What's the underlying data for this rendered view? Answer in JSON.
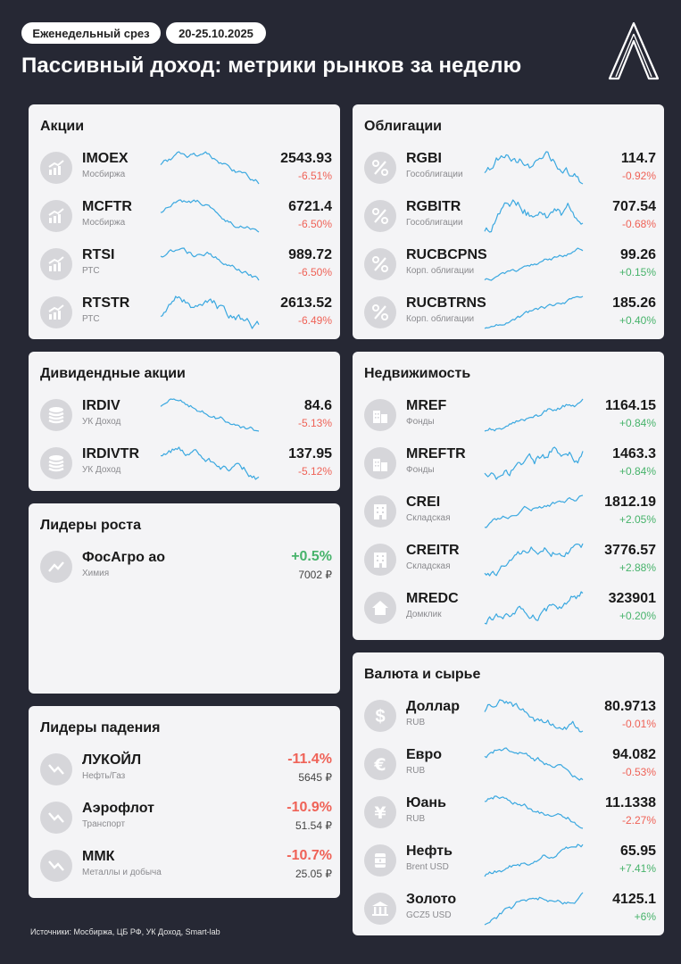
{
  "header": {
    "badge_weekly": "Еженедельный срез",
    "badge_dates": "20-25.10.2025",
    "title": "Пассивный доход: метрики рынков за неделю"
  },
  "colors": {
    "background": "#262834",
    "card": "#f4f4f6",
    "negative": "#ef6257",
    "positive": "#47b36b",
    "sparkline": "#3aa8e0"
  },
  "stocks": {
    "title": "Акции",
    "items": [
      {
        "name": "IMOEX",
        "sub": "Мосбиржа",
        "value": "2543.93",
        "change": "-6.51%",
        "dir": "neg",
        "icon": "chart-up-icon"
      },
      {
        "name": "MCFTR",
        "sub": "Мосбиржа",
        "value": "6721.4",
        "change": "-6.50%",
        "dir": "neg",
        "icon": "chart-up-icon"
      },
      {
        "name": "RTSI",
        "sub": "РТС",
        "value": "989.72",
        "change": "-6.50%",
        "dir": "neg",
        "icon": "chart-up-icon"
      },
      {
        "name": "RTSTR",
        "sub": "РТС",
        "value": "2613.52",
        "change": "-6.49%",
        "dir": "neg",
        "icon": "chart-up-icon"
      }
    ]
  },
  "bonds": {
    "title": "Облигации",
    "items": [
      {
        "name": "RGBI",
        "sub": "Гособлигации",
        "value": "114.7",
        "change": "-0.92%",
        "dir": "neg",
        "icon": "percent-icon"
      },
      {
        "name": "RGBITR",
        "sub": "Гособлигации",
        "value": "707.54",
        "change": "-0.68%",
        "dir": "neg",
        "icon": "percent-icon"
      },
      {
        "name": "RUCBCPNS",
        "sub": "Корп. облигации",
        "value": "99.26",
        "change": "+0.15%",
        "dir": "pos",
        "icon": "percent-icon"
      },
      {
        "name": "RUCBTRNS",
        "sub": "Корп. облигации",
        "value": "185.26",
        "change": "+0.40%",
        "dir": "pos",
        "icon": "percent-icon"
      }
    ]
  },
  "dividend": {
    "title": "Дивидендные акции",
    "items": [
      {
        "name": "IRDIV",
        "sub": "УК Доход",
        "value": "84.6",
        "change": "-5.13%",
        "dir": "neg",
        "icon": "coin-stack-icon"
      },
      {
        "name": "IRDIVTR",
        "sub": "УК Доход",
        "value": "137.95",
        "change": "-5.12%",
        "dir": "neg",
        "icon": "coin-stack-icon"
      }
    ]
  },
  "realty": {
    "title": "Недвижимость",
    "items": [
      {
        "name": "MREF",
        "sub": "Фонды",
        "value": "1164.15",
        "change": "+0.84%",
        "dir": "pos",
        "icon": "buildings-icon"
      },
      {
        "name": "MREFTR",
        "sub": "Фонды",
        "value": "1463.3",
        "change": "+0.84%",
        "dir": "pos",
        "icon": "buildings-icon"
      },
      {
        "name": "CREI",
        "sub": "Складская",
        "value": "1812.19",
        "change": "+2.05%",
        "dir": "pos",
        "icon": "building-icon"
      },
      {
        "name": "CREITR",
        "sub": "Складская",
        "value": "3776.57",
        "change": "+2.88%",
        "dir": "pos",
        "icon": "building-icon"
      },
      {
        "name": "MREDC",
        "sub": "Домклик",
        "value": "323901",
        "change": "+0.20%",
        "dir": "pos",
        "icon": "house-icon"
      }
    ]
  },
  "growth_leaders": {
    "title": "Лидеры роста",
    "items": [
      {
        "name": "ФосАгро ао",
        "sub": "Химия",
        "change": "+0.5%",
        "price": "7002 ₽",
        "dir": "pos",
        "icon": "trend-up-icon"
      }
    ]
  },
  "fall_leaders": {
    "title": "Лидеры падения",
    "items": [
      {
        "name": "ЛУКОЙЛ",
        "sub": "Нефть/Газ",
        "change": "-11.4%",
        "price": "5645 ₽",
        "dir": "neg",
        "icon": "trend-down-icon"
      },
      {
        "name": "Аэрофлот",
        "sub": "Транспорт",
        "change": "-10.9%",
        "price": "51.54 ₽",
        "dir": "neg",
        "icon": "trend-down-icon"
      },
      {
        "name": "ММК",
        "sub": "Металлы и добыча",
        "change": "-10.7%",
        "price": "25.05 ₽",
        "dir": "neg",
        "icon": "trend-down-icon"
      }
    ]
  },
  "fx": {
    "title": "Валюта и сырье",
    "items": [
      {
        "name": "Доллар",
        "sub": "RUB",
        "value": "80.9713",
        "change": "-0.01%",
        "dir": "neg",
        "icon": "dollar-icon"
      },
      {
        "name": "Евро",
        "sub": "RUB",
        "value": "94.082",
        "change": "-0.53%",
        "dir": "neg",
        "icon": "euro-icon"
      },
      {
        "name": "Юань",
        "sub": "RUB",
        "value": "11.1338",
        "change": "-2.27%",
        "dir": "neg",
        "icon": "yuan-icon"
      },
      {
        "name": "Нефть",
        "sub": "Brent USD",
        "value": "65.95",
        "change": "+7.41%",
        "dir": "pos",
        "icon": "oil-barrel-icon"
      },
      {
        "name": "Золото",
        "sub": "GCZ5 USD",
        "value": "4125.1",
        "change": "+6%",
        "dir": "pos",
        "icon": "bank-icon"
      }
    ]
  },
  "footer": {
    "sources": "Источники: Мосбиржа, ЦБ РФ, УК Доход, Smart-lab"
  }
}
